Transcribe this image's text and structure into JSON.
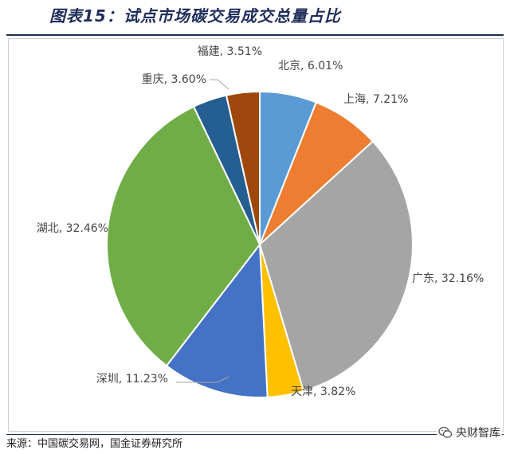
{
  "header": {
    "title": "图表15：试点市场碳交易成交总量占比"
  },
  "footer": {
    "source": "来源：中国碳交易网，国金证券研究所",
    "watermark_text": "央财智库",
    "watermark_icon": "wechat-icon"
  },
  "chart_data": {
    "type": "pie",
    "title": "",
    "categories": [
      "北京",
      "上海",
      "广东",
      "天津",
      "深圳",
      "湖北",
      "重庆",
      "福建"
    ],
    "values": [
      6.01,
      7.21,
      32.16,
      3.82,
      11.23,
      32.46,
      3.6,
      3.51
    ],
    "labels": [
      "北京, 6.01%",
      "上海, 7.21%",
      "广东, 32.16%",
      "天津, 3.82%",
      "深圳, 11.23%",
      "湖北, 32.46%",
      "重庆, 3.60%",
      "福建, 3.51%"
    ],
    "colors": [
      "#5b9bd5",
      "#ed7d31",
      "#a5a5a5",
      "#ffc000",
      "#4472c4",
      "#70ad47",
      "#255e91",
      "#9e480e"
    ],
    "start_angle_deg": 0,
    "direction": "clockwise",
    "unit": "%"
  }
}
